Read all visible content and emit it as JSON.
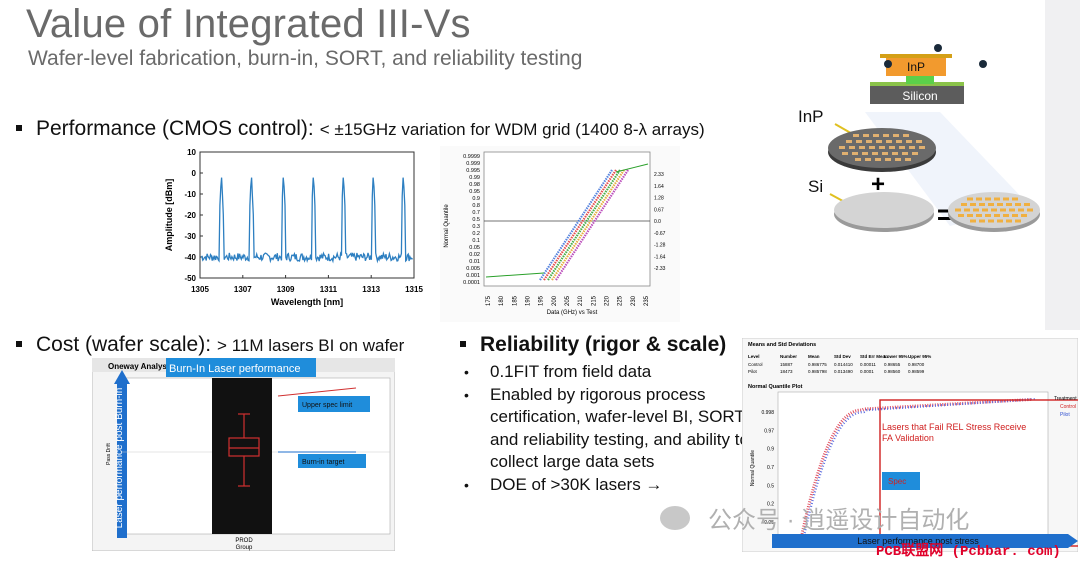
{
  "slide": {
    "title": "Value of Integrated III-Vs",
    "subtitle": "Wafer-level fabrication, burn-in, SORT, and reliability testing"
  },
  "performance": {
    "heading": "Performance (CMOS control):",
    "detail": "< ±15GHz variation for WDM grid (1400 8-λ arrays)"
  },
  "cost": {
    "heading": "Cost (wafer scale):",
    "detail": "> 11M lasers BI on wafer"
  },
  "reliability": {
    "heading": "Reliability (rigor & scale)",
    "items": [
      "0.1FIT from field data",
      "Enabled by rigorous process certification, wafer-level BI, SORT and reliability testing, and ability to collect large data sets",
      "DOE of >30K lasers →"
    ]
  },
  "spectrum_chart": {
    "ylabel": "Amplitude [dBm]",
    "xlabel": "Wavelength [nm]",
    "x_ticks": [
      "1305",
      "1307",
      "1309",
      "1311",
      "1313",
      "1315"
    ],
    "y_ticks": [
      "10",
      "0",
      "-10",
      "-20",
      "-30",
      "-40",
      "-50"
    ],
    "peaks_nm": [
      1306,
      1307.4,
      1308.9,
      1310.3,
      1311.7,
      1313.1,
      1314.5
    ],
    "baseline_dbm": -40,
    "peak_dbm": 0,
    "color": "#2d7fc1"
  },
  "quantile_chart": {
    "ylabel": "Normal Quantile",
    "xlabel": "Data (GHz) vs Test",
    "y_ticks": [
      "0.9999",
      "0.999",
      "0.995",
      "0.99",
      "0.98",
      "0.95",
      "0.9",
      "0.8",
      "0.7",
      "0.5",
      "0.3",
      "0.2",
      "0.1",
      "0.05",
      "0.02",
      "0.01",
      "0.005",
      "0.001",
      "0.0001"
    ],
    "right_ticks": [
      "2.33",
      "1.64",
      "1.28",
      "0.67",
      "0.0",
      "-0.67",
      "-1.28",
      "-1.64",
      "-2.33"
    ],
    "x_ticks": [
      "175",
      "180",
      "185",
      "190",
      "195",
      "200",
      "205",
      "210",
      "215",
      "220",
      "225",
      "230",
      "235"
    ],
    "series_colors": [
      "#3a6fd8",
      "#e03030",
      "#2aa02a",
      "#e0a020",
      "#b030b0"
    ]
  },
  "wafer_diagram": {
    "top_label": "InP",
    "bottom_label": "Silicon",
    "inp_label": "InP",
    "si_label": "Si",
    "plus": "+",
    "equals": "=",
    "accent": "#1f7fd6"
  },
  "oneway_chart": {
    "header": "Oneway Analys",
    "banner": "Burn-In Laser performance",
    "ylabel_small": "Pass Drift",
    "arrow_label": "Laser performance post Burn-in",
    "upper_spec": "Upper spec limit",
    "burnin_target": "Burn-in target",
    "x_tick": "PROD",
    "x_label": "Group"
  },
  "rel_chart": {
    "table_title": "Means and Std Deviations",
    "columns": [
      "Level",
      "Number",
      "Mean",
      "Std Dev",
      "Std Err Mean",
      "Lower 95%",
      "Upper 95%"
    ],
    "rows": [
      [
        "Control",
        "15887",
        "0.986775",
        "0.014410",
        "0.00011",
        "0.98655",
        "0.98700"
      ],
      [
        "Pilot",
        "18473",
        "0.985798",
        "0.013490",
        "0.0001",
        "0.98560",
        "0.98599"
      ]
    ],
    "plot_title": "Normal Quantile Plot",
    "ylabel": "Normal Quantile",
    "y_ticks": [
      "0.998",
      "0.97",
      "0.9",
      "0.7",
      "0.5",
      "0.2",
      "0.05"
    ],
    "fail_label_1": "Lasers that Fail REL Stress Receive",
    "fail_label_2": "FA Validation",
    "spec_label": "Spec",
    "arrow_label": "Laser performance post stress",
    "legend_title": "Treatment",
    "legend_items": [
      "Control",
      "Pilot"
    ]
  },
  "watermark": {
    "text": "公众号 · 逍遥设计自动化",
    "tag": "PCB联盟网 (Pcbbar. com)"
  }
}
